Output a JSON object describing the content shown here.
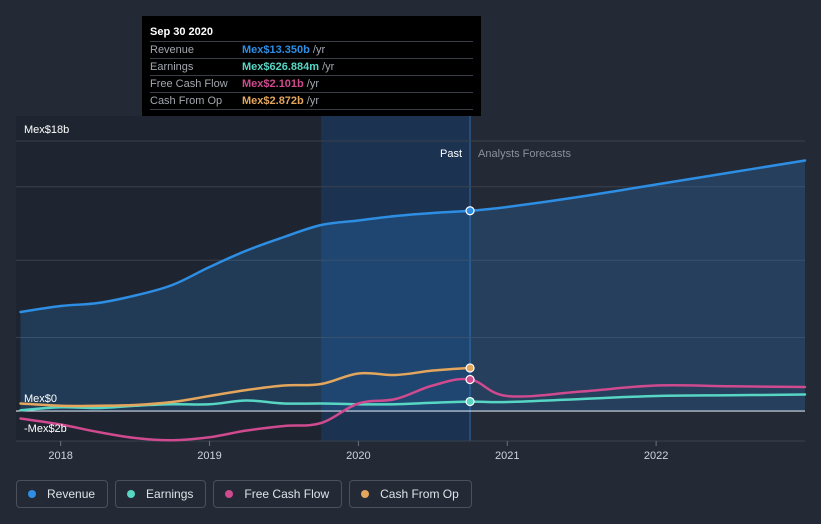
{
  "tooltip": {
    "date": "Sep 30 2020",
    "rows": [
      {
        "label": "Revenue",
        "value": "Mex$13.350b",
        "unit": "/yr",
        "color": "#2d8ee3"
      },
      {
        "label": "Earnings",
        "value": "Mex$626.884m",
        "unit": "/yr",
        "color": "#58d6c4"
      },
      {
        "label": "Free Cash Flow",
        "value": "Mex$2.101b",
        "unit": "/yr",
        "color": "#cf4a8e"
      },
      {
        "label": "Cash From Op",
        "value": "Mex$2.872b",
        "unit": "/yr",
        "color": "#e3a65c"
      }
    ]
  },
  "legend": [
    {
      "label": "Revenue",
      "color": "#2d8ee3"
    },
    {
      "label": "Earnings",
      "color": "#58d6c4"
    },
    {
      "label": "Free Cash Flow",
      "color": "#cf4a8e"
    },
    {
      "label": "Cash From Op",
      "color": "#e3a65c"
    }
  ],
  "chart_data": {
    "type": "line",
    "title": "",
    "y_axis_labels": [
      "Mex$18b",
      "Mex$0",
      "-Mex$2b"
    ],
    "ylim": [
      -2,
      18
    ],
    "xlim": [
      2017.7,
      2023.0
    ],
    "x_ticks": [
      {
        "label": "2018",
        "value": 2018
      },
      {
        "label": "2019",
        "value": 2019
      },
      {
        "label": "2020",
        "value": 2020
      },
      {
        "label": "2021",
        "value": 2021
      },
      {
        "label": "2022",
        "value": 2022
      }
    ],
    "past_label": "Past",
    "forecast_label": "Analysts Forecasts",
    "past_end": 2020.75,
    "highlight_start": 2019.75,
    "series": [
      {
        "name": "Revenue",
        "color": "#2d8ee3",
        "fill": true,
        "points": [
          [
            2017.73,
            6.6
          ],
          [
            2018.0,
            7.0
          ],
          [
            2018.25,
            7.2
          ],
          [
            2018.5,
            7.7
          ],
          [
            2018.75,
            8.4
          ],
          [
            2019.0,
            9.6
          ],
          [
            2019.25,
            10.7
          ],
          [
            2019.5,
            11.6
          ],
          [
            2019.75,
            12.4
          ],
          [
            2020.0,
            12.7
          ],
          [
            2020.25,
            13.0
          ],
          [
            2020.5,
            13.2
          ],
          [
            2020.75,
            13.35
          ],
          [
            2021.0,
            13.6
          ],
          [
            2021.5,
            14.3
          ],
          [
            2022.0,
            15.1
          ],
          [
            2022.5,
            15.9
          ],
          [
            2023.0,
            16.7
          ]
        ]
      },
      {
        "name": "Earnings",
        "color": "#58d6c4",
        "fill": false,
        "points": [
          [
            2017.73,
            0.05
          ],
          [
            2018.0,
            0.25
          ],
          [
            2018.25,
            0.2
          ],
          [
            2018.5,
            0.35
          ],
          [
            2018.75,
            0.45
          ],
          [
            2019.0,
            0.45
          ],
          [
            2019.25,
            0.7
          ],
          [
            2019.5,
            0.5
          ],
          [
            2019.75,
            0.5
          ],
          [
            2020.0,
            0.45
          ],
          [
            2020.25,
            0.45
          ],
          [
            2020.5,
            0.55
          ],
          [
            2020.75,
            0.63
          ],
          [
            2021.0,
            0.6
          ],
          [
            2021.5,
            0.8
          ],
          [
            2022.0,
            1.0
          ],
          [
            2022.5,
            1.05
          ],
          [
            2023.0,
            1.1
          ]
        ]
      },
      {
        "name": "Free Cash Flow",
        "color": "#cf4a8e",
        "fill": false,
        "points": [
          [
            2017.73,
            -0.5
          ],
          [
            2018.0,
            -0.9
          ],
          [
            2018.25,
            -1.4
          ],
          [
            2018.5,
            -1.8
          ],
          [
            2018.75,
            -1.95
          ],
          [
            2019.0,
            -1.75
          ],
          [
            2019.25,
            -1.3
          ],
          [
            2019.5,
            -1.0
          ],
          [
            2019.75,
            -0.8
          ],
          [
            2020.0,
            0.5
          ],
          [
            2020.25,
            0.8
          ],
          [
            2020.5,
            1.7
          ],
          [
            2020.75,
            2.1
          ],
          [
            2021.0,
            1.0
          ],
          [
            2021.5,
            1.3
          ],
          [
            2022.0,
            1.7
          ],
          [
            2022.5,
            1.65
          ],
          [
            2023.0,
            1.6
          ]
        ]
      },
      {
        "name": "Cash From Op",
        "color": "#e3a65c",
        "fill": false,
        "points": [
          [
            2017.73,
            0.5
          ],
          [
            2018.0,
            0.35
          ],
          [
            2018.25,
            0.35
          ],
          [
            2018.5,
            0.4
          ],
          [
            2018.75,
            0.6
          ],
          [
            2019.0,
            1.0
          ],
          [
            2019.25,
            1.4
          ],
          [
            2019.5,
            1.7
          ],
          [
            2019.75,
            1.8
          ],
          [
            2020.0,
            2.5
          ],
          [
            2020.25,
            2.4
          ],
          [
            2020.5,
            2.7
          ],
          [
            2020.75,
            2.87
          ]
        ]
      }
    ],
    "markers": [
      {
        "series": "Revenue",
        "x": 2020.75,
        "y": 13.35
      },
      {
        "series": "Earnings",
        "x": 2020.75,
        "y": 0.63
      },
      {
        "series": "Free Cash Flow",
        "x": 2020.75,
        "y": 2.1
      },
      {
        "series": "Cash From Op",
        "x": 2020.75,
        "y": 2.87
      }
    ]
  }
}
